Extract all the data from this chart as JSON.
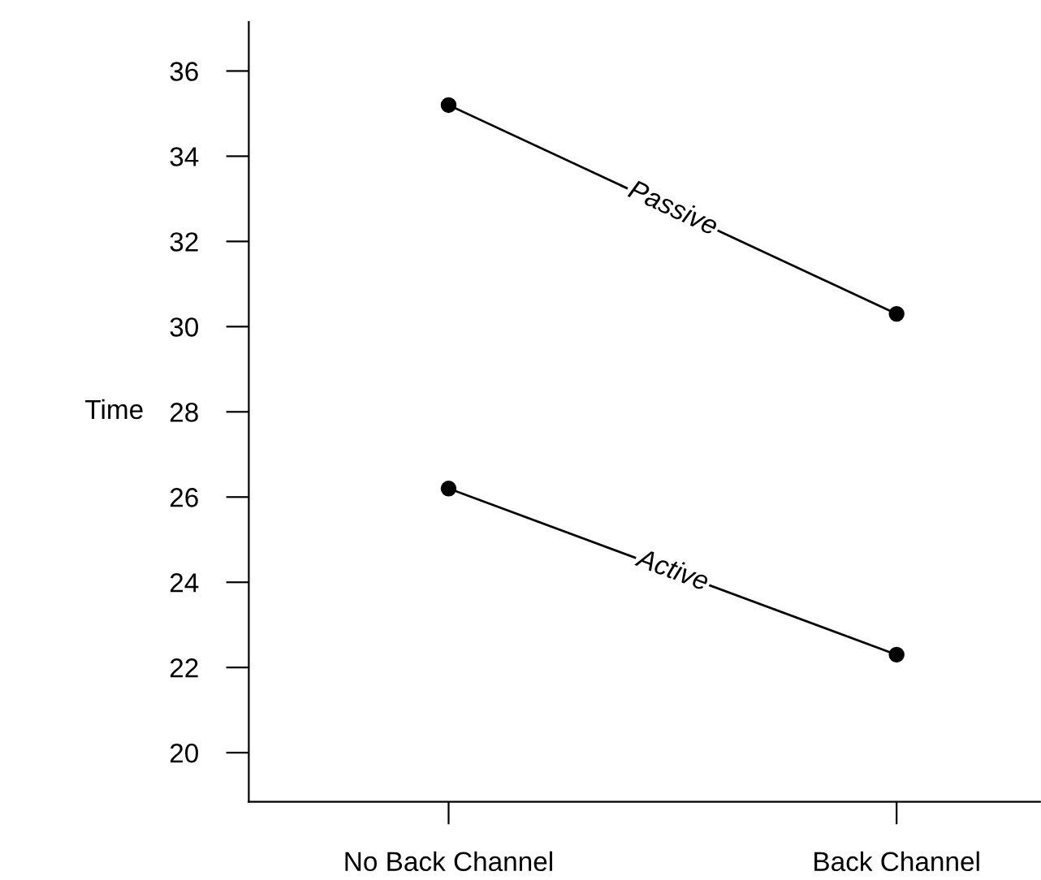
{
  "chart_data": {
    "type": "line",
    "ylabel": "Time",
    "categories": [
      "No Back Channel",
      "Back Channel"
    ],
    "series": [
      {
        "name": "Passive",
        "color": "#000000",
        "values": [
          35.2,
          30.3
        ]
      },
      {
        "name": "Active",
        "color": "#000000",
        "values": [
          26.2,
          22.3
        ]
      }
    ],
    "ylim": [
      18.85,
      37.15
    ],
    "yticks": [
      20,
      22,
      24,
      26,
      28,
      30,
      32,
      34,
      36
    ],
    "marker": "circle",
    "line_style": "solid",
    "grid": false,
    "legend": false
  }
}
